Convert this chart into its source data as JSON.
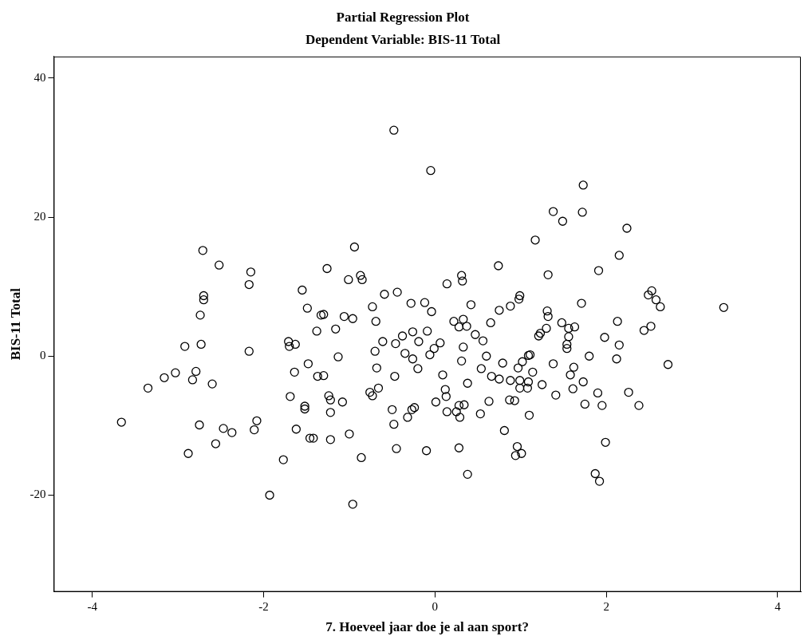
{
  "chart_data": {
    "type": "scatter",
    "title": "Partial Regression Plot",
    "subtitle": "Dependent Variable: BIS-11 Total",
    "xlabel": "7. Hoeveel jaar doe je al aan sport?",
    "ylabel": "BIS-11 Total",
    "xlim": [
      -4.45,
      4.27
    ],
    "ylim": [
      -33.9,
      43.1
    ],
    "xticks": [
      -4,
      -2,
      0,
      2,
      4
    ],
    "yticks": [
      -20,
      0,
      20,
      40
    ],
    "grid": false,
    "legend": false,
    "marker": "circle",
    "series": [
      {
        "color": "#000000",
        "x": [
          -3.66,
          -3.35,
          -3.16,
          -3.03,
          -2.92,
          -2.88,
          -2.83,
          -2.79,
          -2.75,
          -2.73,
          -2.74,
          -2.7,
          -2.7,
          -2.71,
          -2.6,
          -2.56,
          -2.52,
          -2.47,
          -2.37,
          -2.17,
          -2.17,
          -2.15,
          -2.11,
          -2.08,
          -1.93,
          -1.77,
          -1.71,
          -1.7,
          -1.69,
          -1.64,
          -1.63,
          -1.62,
          -1.55,
          -1.52,
          -1.52,
          -1.49,
          -1.48,
          -1.46,
          -1.42,
          -1.38,
          -1.37,
          -1.33,
          -1.3,
          -1.3,
          -1.26,
          -1.24,
          -1.22,
          -1.22,
          -1.22,
          -1.16,
          -1.13,
          -1.08,
          -1.06,
          -1.01,
          -1.0,
          -0.96,
          -0.96,
          -0.94,
          -0.87,
          -0.86,
          -0.85,
          -0.76,
          -0.73,
          -0.73,
          -0.7,
          -0.69,
          -0.68,
          -0.66,
          -0.61,
          -0.59,
          -0.5,
          -0.48,
          -0.48,
          -0.47,
          -0.46,
          -0.45,
          -0.44,
          -0.38,
          -0.35,
          -0.32,
          -0.28,
          -0.27,
          -0.26,
          -0.26,
          -0.24,
          -0.2,
          -0.19,
          -0.12,
          -0.1,
          -0.09,
          -0.06,
          -0.05,
          -0.04,
          -0.01,
          0.01,
          0.06,
          0.09,
          0.12,
          0.13,
          0.14,
          0.14,
          0.22,
          0.25,
          0.28,
          0.28,
          0.28,
          0.29,
          0.31,
          0.31,
          0.32,
          0.33,
          0.33,
          0.34,
          0.37,
          0.38,
          0.38,
          0.42,
          0.47,
          0.53,
          0.54,
          0.56,
          0.6,
          0.63,
          0.65,
          0.66,
          0.74,
          0.75,
          0.75,
          0.79,
          0.81,
          0.87,
          0.88,
          0.88,
          0.93,
          0.94,
          0.96,
          0.97,
          0.98,
          0.99,
          0.99,
          0.99,
          1.01,
          1.02,
          1.08,
          1.09,
          1.09,
          1.1,
          1.11,
          1.14,
          1.17,
          1.21,
          1.23,
          1.25,
          1.3,
          1.31,
          1.32,
          1.32,
          1.38,
          1.38,
          1.41,
          1.48,
          1.49,
          1.54,
          1.54,
          1.56,
          1.56,
          1.58,
          1.61,
          1.62,
          1.63,
          1.71,
          1.72,
          1.73,
          1.73,
          1.75,
          1.8,
          1.87,
          1.9,
          1.91,
          1.92,
          1.95,
          1.98,
          1.99,
          2.12,
          2.13,
          2.15,
          2.15,
          2.24,
          2.26,
          2.38,
          2.44,
          2.49,
          2.52,
          2.53,
          2.58,
          2.63,
          2.72,
          3.37
        ],
        "values": [
          -9.5,
          -4.6,
          -3.1,
          -2.4,
          1.4,
          -14.0,
          -3.4,
          -2.2,
          -9.9,
          1.7,
          5.9,
          8.1,
          8.7,
          15.2,
          -4.0,
          -12.6,
          13.1,
          -10.4,
          -11.0,
          0.7,
          10.3,
          12.1,
          -10.6,
          -9.3,
          -20.0,
          -14.9,
          2.1,
          1.4,
          -5.8,
          -2.3,
          1.7,
          -10.5,
          9.5,
          -7.2,
          -7.6,
          6.9,
          -1.1,
          -11.8,
          -11.8,
          3.6,
          -2.9,
          5.9,
          6.0,
          -2.8,
          12.6,
          -5.7,
          -6.3,
          -8.1,
          -12.0,
          3.9,
          -0.1,
          -6.6,
          5.7,
          11.0,
          -11.2,
          5.4,
          -21.3,
          15.7,
          11.6,
          -14.6,
          11.0,
          -5.2,
          7.1,
          -5.7,
          0.7,
          5.0,
          -1.7,
          -4.6,
          2.1,
          8.9,
          -7.7,
          -9.8,
          32.5,
          -2.9,
          1.8,
          -13.3,
          9.2,
          2.9,
          0.4,
          -8.8,
          7.6,
          -7.7,
          -0.4,
          3.5,
          -7.4,
          -1.8,
          2.1,
          7.7,
          -13.6,
          3.6,
          0.2,
          26.7,
          6.4,
          1.1,
          -6.6,
          1.9,
          -2.7,
          -4.8,
          -5.8,
          10.4,
          -8.0,
          5.0,
          -8.0,
          4.2,
          -7.1,
          -13.2,
          -8.8,
          -0.7,
          11.6,
          10.8,
          1.3,
          5.3,
          -7.0,
          4.3,
          -17.0,
          -3.9,
          7.4,
          3.1,
          -8.3,
          -1.8,
          2.2,
          0.0,
          -6.5,
          4.8,
          -2.9,
          13.0,
          -3.3,
          6.6,
          -1.0,
          -10.7,
          -6.3,
          -3.5,
          7.2,
          -6.4,
          -14.3,
          -13.0,
          -1.7,
          8.2,
          8.7,
          -3.5,
          -4.6,
          -14.0,
          -0.8,
          -4.6,
          0.1,
          -3.7,
          -8.5,
          0.2,
          -2.3,
          16.7,
          2.9,
          3.3,
          -4.1,
          4.0,
          6.5,
          5.7,
          11.7,
          20.8,
          -1.1,
          -5.6,
          4.8,
          19.4,
          1.7,
          1.1,
          2.8,
          4.0,
          -2.7,
          -4.7,
          -1.6,
          4.2,
          7.6,
          20.7,
          24.6,
          -3.7,
          -6.9,
          0.0,
          -16.9,
          -5.3,
          12.3,
          -18.0,
          -7.1,
          2.7,
          -12.4,
          -0.4,
          5.0,
          14.5,
          1.6,
          18.4,
          -5.2,
          -7.1,
          3.7,
          8.8,
          4.3,
          9.4,
          8.1,
          7.1,
          -1.2,
          7.0
        ]
      }
    ]
  }
}
